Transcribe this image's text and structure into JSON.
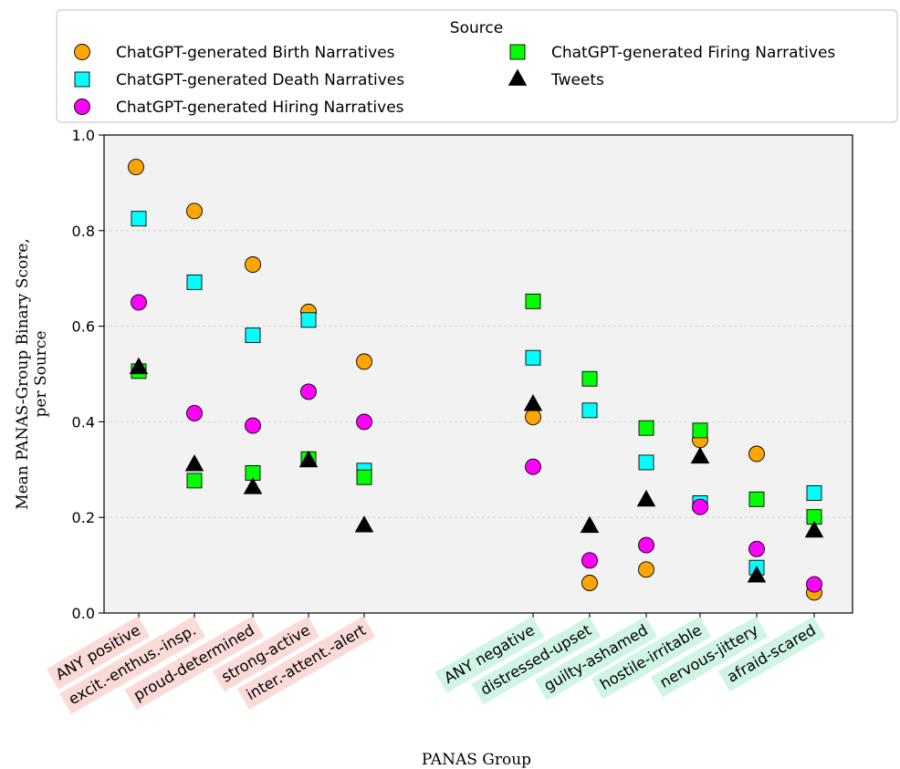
{
  "chart_data": {
    "type": "scatter",
    "xlabel": "PANAS Group",
    "ylabel_lines": [
      "Mean PANAS-Group Binary Score,",
      "per Source"
    ],
    "ylim": [
      0.0,
      1.0
    ],
    "yticks": [
      "0.0",
      "0.2",
      "0.4",
      "0.6",
      "0.8",
      "1.0"
    ],
    "grid": "horizontal dashed",
    "legend": {
      "title": "Source",
      "placement": "above plot",
      "columns": 2
    },
    "categories": [
      {
        "label": "ANY positive",
        "group": "positive"
      },
      {
        "label": "excit.-enthus.-insp.",
        "group": "positive"
      },
      {
        "label": "proud-determined",
        "group": "positive"
      },
      {
        "label": "strong-active",
        "group": "positive"
      },
      {
        "label": "inter.-attent.-alert",
        "group": "positive"
      },
      {
        "label": "ANY negative",
        "group": "negative"
      },
      {
        "label": "distressed-upset",
        "group": "negative"
      },
      {
        "label": "guilty-ashamed",
        "group": "negative"
      },
      {
        "label": "hostile-irritable",
        "group": "negative"
      },
      {
        "label": "nervous-jittery",
        "group": "negative"
      },
      {
        "label": "afraid-scared",
        "group": "negative"
      }
    ],
    "group_colors": {
      "positive": "#fadbd8",
      "negative": "#d0f5e4"
    },
    "series": [
      {
        "name": "ChatGPT-generated Birth Narratives",
        "marker": "circle",
        "color": "#ffa500",
        "values": [
          0.933,
          0.841,
          0.729,
          0.63,
          0.526,
          0.41,
          0.063,
          0.091,
          0.362,
          0.333,
          0.043
        ]
      },
      {
        "name": "ChatGPT-generated Death Narratives",
        "marker": "square",
        "color": "#00ffff",
        "values": [
          0.825,
          0.692,
          0.581,
          0.613,
          0.298,
          0.534,
          0.424,
          0.315,
          0.23,
          0.095,
          0.251
        ]
      },
      {
        "name": "ChatGPT-generated Hiring Narratives",
        "marker": "circle",
        "color": "#ff00ff",
        "values": [
          0.65,
          0.418,
          0.392,
          0.463,
          0.4,
          0.306,
          0.11,
          0.142,
          0.222,
          0.134,
          0.06
        ]
      },
      {
        "name": "ChatGPT-generated Firing Narratives",
        "marker": "square",
        "color": "#00ff00",
        "values": [
          0.506,
          0.277,
          0.293,
          0.322,
          0.284,
          0.652,
          0.49,
          0.387,
          0.382,
          0.238,
          0.201
        ]
      },
      {
        "name": "Tweets",
        "marker": "triangle",
        "color": "#000000",
        "values": [
          0.513,
          0.31,
          0.262,
          0.318,
          0.182,
          0.436,
          0.181,
          0.236,
          0.326,
          0.077,
          0.171
        ]
      }
    ]
  }
}
